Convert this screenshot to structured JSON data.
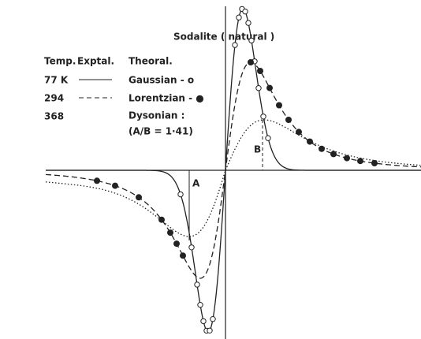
{
  "title": "Sodalite ( natural )",
  "legend": {
    "headers": [
      "Temp.",
      "Exptal.",
      "Theoral."
    ],
    "rows": [
      {
        "temp": "77 K",
        "theoretical": "Gaussian - o"
      },
      {
        "temp": "294",
        "theoretical": "Lorentzian - ●"
      },
      {
        "temp": "368",
        "theoretical": "Dysonian :"
      }
    ],
    "note": "(A/B = 1·41)"
  },
  "markers": {
    "a": "A",
    "b": "B"
  }
}
